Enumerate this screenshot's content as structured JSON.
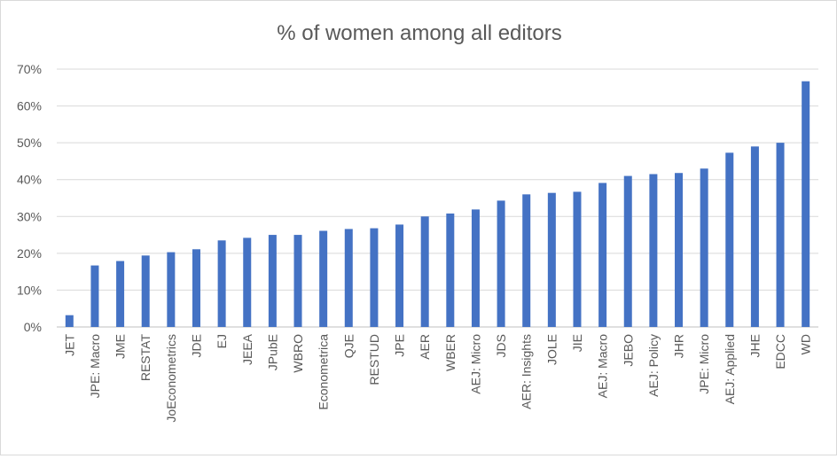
{
  "chart_data": {
    "type": "bar",
    "title": "% of women among all editors",
    "xlabel": "",
    "ylabel": "",
    "ylim": [
      0,
      70
    ],
    "yticks": [
      "0%",
      "10%",
      "20%",
      "30%",
      "40%",
      "50%",
      "60%",
      "70%"
    ],
    "grid": true,
    "legend": "none",
    "bar_color": "#4472c4",
    "categories": [
      "JET",
      "JPE: Macro",
      "JME",
      "RESTAT",
      "JoEconometrics",
      "JDE",
      "EJ",
      "JEEA",
      "JPubE",
      "WBRO",
      "Econometrica",
      "QJE",
      "RESTUD",
      "JPE",
      "AER",
      "WBER",
      "AEJ: Micro",
      "JDS",
      "AER: Insights",
      "JOLE",
      "JIE",
      "AEJ: Macro",
      "JEBO",
      "AEJ: Policy",
      "JHR",
      "JPE: Micro",
      "AEJ: Applied",
      "JHE",
      "EDCC",
      "WD"
    ],
    "values": [
      3.2,
      16.7,
      17.9,
      19.4,
      20.3,
      21.1,
      23.5,
      24.2,
      25.0,
      25.0,
      26.1,
      26.6,
      26.8,
      27.8,
      30.0,
      30.8,
      31.9,
      34.3,
      36.0,
      36.4,
      36.7,
      39.1,
      41.0,
      41.5,
      41.8,
      43.0,
      47.3,
      49.0,
      50.0,
      66.7
    ]
  }
}
